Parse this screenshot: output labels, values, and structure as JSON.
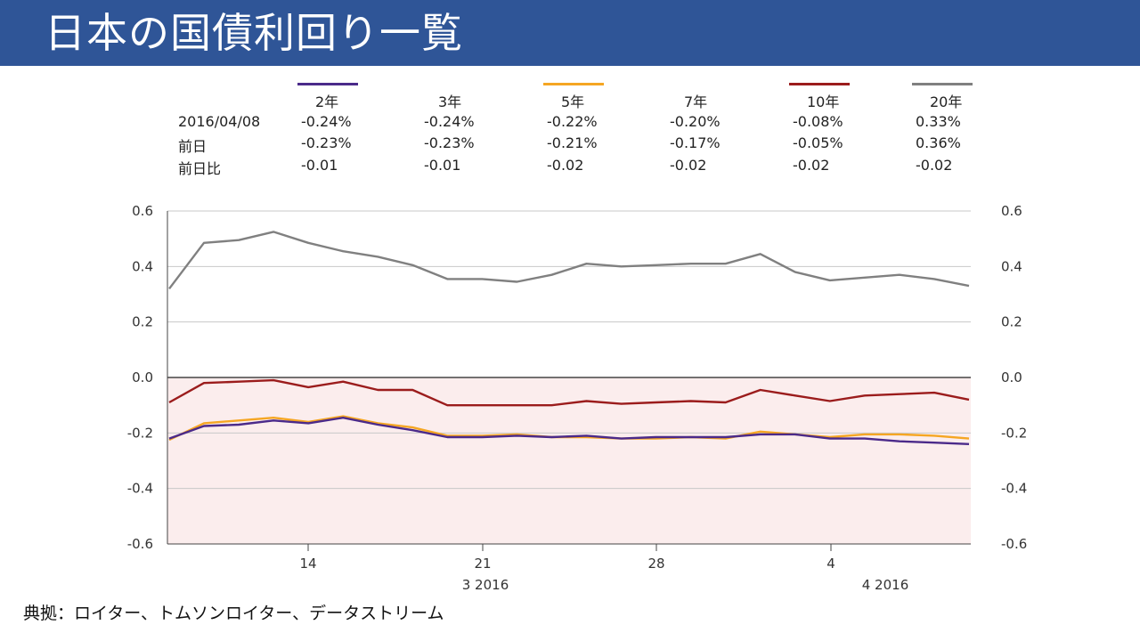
{
  "title": "日本の国債利回り一覧",
  "legend": {
    "series": [
      {
        "name": "2年",
        "color": "#4b2a8a"
      },
      {
        "name": "3年",
        "color": "#2f5597"
      },
      {
        "name": "5年",
        "color": "#f5a623"
      },
      {
        "name": "7年",
        "color": "#1a1a1a"
      },
      {
        "name": "10年",
        "color": "#9b1c1c"
      },
      {
        "name": "20年",
        "color": "#808080"
      }
    ],
    "rows": [
      {
        "label": "2016/04/08",
        "values": [
          "-0.24%",
          "-0.24%",
          "-0.22%",
          "-0.20%",
          "-0.08%",
          "0.33%"
        ]
      },
      {
        "label": "前日",
        "values": [
          "-0.23%",
          "-0.23%",
          "-0.21%",
          "-0.17%",
          "-0.05%",
          "0.36%"
        ]
      },
      {
        "label": "前日比",
        "values": [
          "-0.01",
          "-0.01",
          "-0.02",
          "-0.02",
          "-0.02",
          "-0.02"
        ]
      }
    ]
  },
  "chart_data": {
    "type": "line",
    "x_tick_labels": [
      "14",
      "21",
      "28",
      "4"
    ],
    "month_labels": [
      "3 2016",
      "4 2016"
    ],
    "y_tick_labels": [
      "0.6",
      "0.4",
      "0.2",
      "0.0",
      "-0.2",
      "-0.4",
      "-0.6"
    ],
    "ylim": [
      -0.6,
      0.6
    ],
    "negative_region_shaded": true,
    "series": [
      {
        "name": "20年",
        "color": "#808080",
        "values": [
          0.32,
          0.485,
          0.495,
          0.525,
          0.485,
          0.455,
          0.435,
          0.405,
          0.355,
          0.355,
          0.345,
          0.37,
          0.41,
          0.4,
          0.405,
          0.41,
          0.41,
          0.445,
          0.38,
          0.35,
          0.36,
          0.37,
          0.355,
          0.33
        ]
      },
      {
        "name": "10年",
        "color": "#9b1c1c",
        "values": [
          -0.09,
          -0.02,
          -0.015,
          -0.01,
          -0.035,
          -0.015,
          -0.045,
          -0.045,
          -0.1,
          -0.1,
          -0.1,
          -0.1,
          -0.085,
          -0.095,
          -0.09,
          -0.085,
          -0.09,
          -0.045,
          -0.065,
          -0.085,
          -0.065,
          -0.06,
          -0.055,
          -0.08
        ]
      },
      {
        "name": "5年",
        "color": "#f5a623",
        "values": [
          -0.225,
          -0.165,
          -0.155,
          -0.145,
          -0.16,
          -0.14,
          -0.165,
          -0.18,
          -0.21,
          -0.21,
          -0.205,
          -0.215,
          -0.215,
          -0.22,
          -0.22,
          -0.215,
          -0.22,
          -0.195,
          -0.205,
          -0.215,
          -0.205,
          -0.205,
          -0.21,
          -0.22
        ]
      },
      {
        "name": "2年",
        "color": "#4b2a8a",
        "values": [
          -0.22,
          -0.175,
          -0.17,
          -0.155,
          -0.165,
          -0.145,
          -0.17,
          -0.19,
          -0.215,
          -0.215,
          -0.21,
          -0.215,
          -0.21,
          -0.22,
          -0.215,
          -0.215,
          -0.215,
          -0.205,
          -0.205,
          -0.22,
          -0.22,
          -0.23,
          -0.235,
          -0.24
        ]
      }
    ]
  },
  "source": "典拠：ロイター、トムソンロイター、データストリーム"
}
